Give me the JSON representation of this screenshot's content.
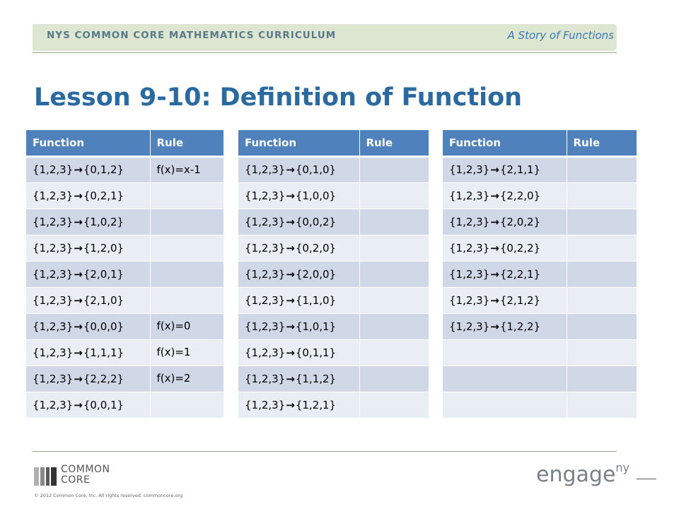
{
  "header": {
    "curriculum": "NYS COMMON CORE MATHEMATICS CURRICULUM",
    "module": "A Story of Functions"
  },
  "title": "Lesson 9-10: Definition of Function",
  "tables": [
    {
      "headers": [
        "Function",
        "Rule"
      ],
      "rows": [
        {
          "domain": "{1,2,3}",
          "codomain": "{0,1,2}",
          "rule": "f(x)=x-1"
        },
        {
          "domain": "{1,2,3}",
          "codomain": "{0,2,1}",
          "rule": ""
        },
        {
          "domain": "{1,2,3}",
          "codomain": "{1,0,2}",
          "rule": ""
        },
        {
          "domain": "{1,2,3}",
          "codomain": "{1,2,0}",
          "rule": ""
        },
        {
          "domain": "{1,2,3}",
          "codomain": "{2,0,1}",
          "rule": ""
        },
        {
          "domain": "{1,2,3}",
          "codomain": "{2,1,0}",
          "rule": ""
        },
        {
          "domain": "{1,2,3}",
          "codomain": "{0,0,0}",
          "rule": "f(x)=0"
        },
        {
          "domain": "{1,2,3}",
          "codomain": "{1,1,1}",
          "rule": "f(x)=1"
        },
        {
          "domain": "{1,2,3}",
          "codomain": "{2,2,2}",
          "rule": "f(x)=2"
        },
        {
          "domain": "{1,2,3}",
          "codomain": "{0,0,1}",
          "rule": ""
        }
      ]
    },
    {
      "headers": [
        "Function",
        "Rule"
      ],
      "rows": [
        {
          "domain": "{1,2,3}",
          "codomain": "{0,1,0}",
          "rule": ""
        },
        {
          "domain": "{1,2,3}",
          "codomain": "{1,0,0}",
          "rule": ""
        },
        {
          "domain": "{1,2,3}",
          "codomain": "{0,0,2}",
          "rule": ""
        },
        {
          "domain": "{1,2,3}",
          "codomain": "{0,2,0}",
          "rule": ""
        },
        {
          "domain": "{1,2,3}",
          "codomain": "{2,0,0}",
          "rule": ""
        },
        {
          "domain": "{1,2,3}",
          "codomain": "{1,1,0}",
          "rule": ""
        },
        {
          "domain": "{1,2,3}",
          "codomain": "{1,0,1}",
          "rule": ""
        },
        {
          "domain": "{1,2,3}",
          "codomain": "{0,1,1}",
          "rule": ""
        },
        {
          "domain": "{1,2,3}",
          "codomain": "{1,1,2}",
          "rule": ""
        },
        {
          "domain": "{1,2,3}",
          "codomain": "{1,2,1}",
          "rule": ""
        }
      ]
    },
    {
      "headers": [
        "Function",
        "Rule"
      ],
      "rows": [
        {
          "domain": "{1,2,3}",
          "codomain": "{2,1,1}",
          "rule": ""
        },
        {
          "domain": "{1,2,3}",
          "codomain": "{2,2,0}",
          "rule": ""
        },
        {
          "domain": "{1,2,3}",
          "codomain": "{2,0,2}",
          "rule": ""
        },
        {
          "domain": "{1,2,3}",
          "codomain": "{0,2,2}",
          "rule": ""
        },
        {
          "domain": "{1,2,3}",
          "codomain": "{2,2,1}",
          "rule": ""
        },
        {
          "domain": "{1,2,3}",
          "codomain": "{2,1,2}",
          "rule": ""
        },
        {
          "domain": "{1,2,3}",
          "codomain": "{1,2,2}",
          "rule": ""
        },
        {
          "domain": "",
          "codomain": "",
          "rule": ""
        },
        {
          "domain": "",
          "codomain": "",
          "rule": ""
        },
        {
          "domain": "",
          "codomain": "",
          "rule": ""
        }
      ]
    }
  ],
  "footer": {
    "logo_line1": "COMMON",
    "logo_line2": "CORE",
    "copyright": "© 2012 Common Core, Inc. All rights reserved. commoncore.org",
    "brand": "engage",
    "brand_sup": "ny"
  },
  "colors": {
    "header_fill": "#4f81bd",
    "row_odd": "#d0d8e8",
    "row_even": "#e9edf4",
    "title": "#2a6aa0"
  }
}
